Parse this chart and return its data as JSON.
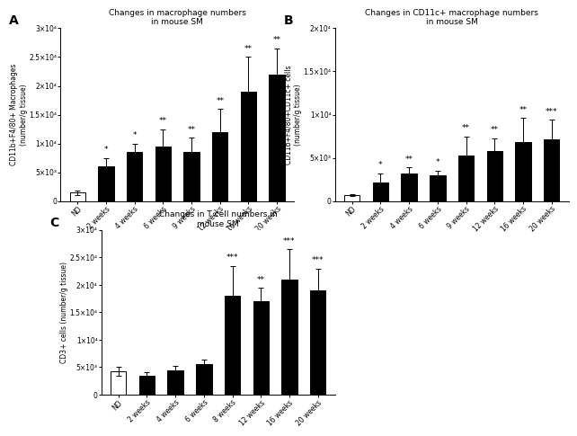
{
  "panel_A": {
    "title": "Changes in macrophage numbers\nin mouse SM",
    "ylabel": "CD11b+F4/80+ Macrophages\n(number/g tissue)",
    "categories": [
      "ND",
      "2 weeks",
      "4 weeks",
      "6 weeks",
      "9 weeks",
      "12 weeks",
      "16 weeks",
      "20 weeks"
    ],
    "values": [
      1500,
      6000,
      8500,
      9500,
      8500,
      12000,
      19000,
      22000
    ],
    "errors": [
      400,
      1500,
      1500,
      3000,
      2500,
      4000,
      6000,
      4500
    ],
    "colors": [
      "white",
      "black",
      "black",
      "black",
      "black",
      "black",
      "black",
      "black"
    ],
    "sig": [
      "",
      "*",
      "*",
      "**",
      "**",
      "**",
      "**",
      "**"
    ],
    "ylim": [
      0,
      30000
    ],
    "yticks": [
      0,
      5000,
      10000,
      15000,
      20000,
      25000,
      30000
    ],
    "ytick_labels": [
      "0",
      "5×10³",
      "1×10⁴",
      "1.5×10⁴",
      "2×10⁴",
      "2.5×10⁴",
      "3×10⁴"
    ]
  },
  "panel_B": {
    "title": "Changes in CD11c+ macrophage numbers\nin mouse SM",
    "ylabel": "CD11b+F4/80+CD11c+ cells\n(number/g tissue)",
    "categories": [
      "ND",
      "2 weeks",
      "4 weeks",
      "6 weeks",
      "9 weeks",
      "12 weeks",
      "16 weeks",
      "20 weeks"
    ],
    "values": [
      700,
      2200,
      3200,
      3000,
      5300,
      5800,
      6800,
      7200
    ],
    "errors": [
      150,
      1000,
      700,
      500,
      2200,
      1500,
      2800,
      2200
    ],
    "colors": [
      "white",
      "black",
      "black",
      "black",
      "black",
      "black",
      "black",
      "black"
    ],
    "sig": [
      "",
      "*",
      "**",
      "*",
      "**",
      "**",
      "**",
      "***"
    ],
    "ylim": [
      0,
      20000
    ],
    "yticks": [
      0,
      5000,
      10000,
      15000,
      20000
    ],
    "ytick_labels": [
      "0",
      "5×10³",
      "1×10⁴",
      "1.5×10⁴",
      "2×10⁴"
    ]
  },
  "panel_C": {
    "title": "Changes in T cell numbers in\nmouse SM",
    "ylabel": "CD3+ cells (number/g tissue)",
    "categories": [
      "ND",
      "2 weeks",
      "4 weeks",
      "6 weeks",
      "8 weeks",
      "12 weeks",
      "16 weeks",
      "20 weeks"
    ],
    "values": [
      4200,
      3500,
      4500,
      5500,
      18000,
      17000,
      21000,
      19000
    ],
    "errors": [
      800,
      600,
      700,
      900,
      5500,
      2500,
      5500,
      4000
    ],
    "colors": [
      "white",
      "black",
      "black",
      "black",
      "black",
      "black",
      "black",
      "black"
    ],
    "sig": [
      "",
      "",
      "",
      "",
      "***",
      "**",
      "***",
      "***"
    ],
    "ylim": [
      0,
      30000
    ],
    "yticks": [
      0,
      5000,
      10000,
      15000,
      20000,
      25000,
      30000
    ],
    "ytick_labels": [
      "0",
      "5×10³",
      "1×10⁴",
      "1.5×10⁴",
      "2×10⁴",
      "2.5×10⁴",
      "3×10⁴"
    ]
  },
  "bg_color": "#ffffff",
  "bar_width": 0.55,
  "title_fontsize": 6.5,
  "tick_fontsize": 5.5,
  "sig_fontsize": 6.5,
  "ylabel_fontsize": 5.5,
  "panel_label_fontsize": 10
}
